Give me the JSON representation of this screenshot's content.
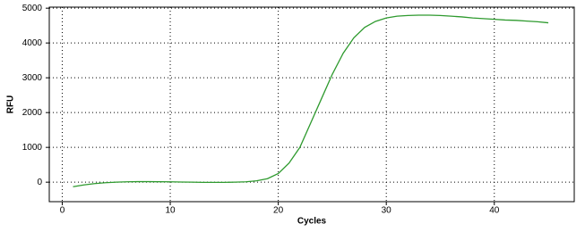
{
  "chart_data": {
    "type": "line",
    "x_label": "Cycles",
    "y_label": "RFU",
    "x": [
      1,
      2,
      3,
      4,
      5,
      6,
      7,
      8,
      9,
      10,
      11,
      12,
      13,
      14,
      15,
      16,
      17,
      18,
      19,
      20,
      21,
      22,
      23,
      24,
      25,
      26,
      27,
      28,
      29,
      30,
      31,
      32,
      33,
      34,
      35,
      36,
      37,
      38,
      39,
      40,
      41,
      42,
      43,
      44,
      45
    ],
    "series": [
      {
        "color": "#2e9a2e",
        "values": [
          -130,
          -80,
          -40,
          -15,
          0,
          10,
          15,
          15,
          12,
          10,
          5,
          0,
          -5,
          -5,
          -5,
          0,
          10,
          40,
          100,
          250,
          550,
          1000,
          1700,
          2400,
          3100,
          3700,
          4150,
          4450,
          4620,
          4720,
          4770,
          4790,
          4800,
          4800,
          4790,
          4770,
          4750,
          4720,
          4700,
          4680,
          4660,
          4650,
          4630,
          4610,
          4580
        ]
      }
    ],
    "xlim": [
      -1.2,
      47.4
    ],
    "ylim": [
      -560,
      5030
    ],
    "xticks": [
      0,
      10,
      20,
      30,
      40
    ],
    "yticks": [
      0,
      1000,
      2000,
      3000,
      4000,
      5000
    ],
    "grid": true
  }
}
